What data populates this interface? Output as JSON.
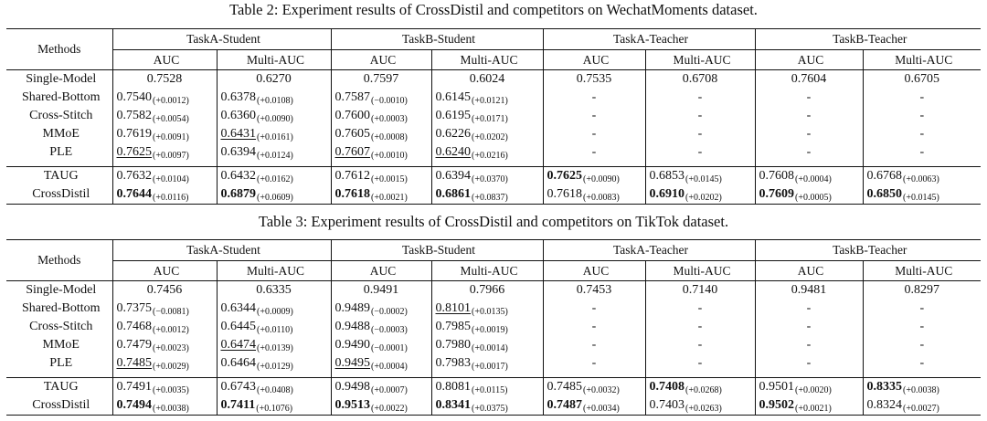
{
  "table2": {
    "caption": "Table 2: Experiment results of CrossDistil and competitors on WechatMoments dataset.",
    "methods_label": "Methods",
    "groups": [
      "TaskA-Student",
      "TaskB-Student",
      "TaskA-Teacher",
      "TaskB-Teacher"
    ],
    "subheads": [
      "AUC",
      "Multi-AUC",
      "AUC",
      "Multi-AUC",
      "AUC",
      "Multi-AUC",
      "AUC",
      "Multi-AUC"
    ],
    "rows": [
      {
        "method": "Single-Model",
        "cells": [
          {
            "v": "0.7528"
          },
          {
            "v": "0.6270"
          },
          {
            "v": "0.7597"
          },
          {
            "v": "0.6024"
          },
          {
            "v": "0.7535"
          },
          {
            "v": "0.6708"
          },
          {
            "v": "0.7604"
          },
          {
            "v": "0.6705"
          }
        ]
      },
      {
        "method": "Shared-Bottom",
        "cells": [
          {
            "v": "0.7540",
            "d": "(+0.0012)"
          },
          {
            "v": "0.6378",
            "d": "(+0.0108)"
          },
          {
            "v": "0.7587",
            "d": "(−0.0010)"
          },
          {
            "v": "0.6145",
            "d": "(+0.0121)"
          },
          {
            "v": "-"
          },
          {
            "v": "-"
          },
          {
            "v": "-"
          },
          {
            "v": "-"
          }
        ]
      },
      {
        "method": "Cross-Stitch",
        "cells": [
          {
            "v": "0.7582",
            "d": "(+0.0054)"
          },
          {
            "v": "0.6360",
            "d": "(+0.0090)"
          },
          {
            "v": "0.7600",
            "d": "(+0.0003)"
          },
          {
            "v": "0.6195",
            "d": "(+0.0171)"
          },
          {
            "v": "-"
          },
          {
            "v": "-"
          },
          {
            "v": "-"
          },
          {
            "v": "-"
          }
        ]
      },
      {
        "method": "MMoE",
        "cells": [
          {
            "v": "0.7619",
            "d": "(+0.0091)"
          },
          {
            "v": "0.6431",
            "d": "(+0.0161)",
            "u": true
          },
          {
            "v": "0.7605",
            "d": "(+0.0008)"
          },
          {
            "v": "0.6226",
            "d": "(+0.0202)"
          },
          {
            "v": "-"
          },
          {
            "v": "-"
          },
          {
            "v": "-"
          },
          {
            "v": "-"
          }
        ]
      },
      {
        "method": "PLE",
        "cells": [
          {
            "v": "0.7625",
            "d": "(+0.0097)",
            "u": true
          },
          {
            "v": "0.6394",
            "d": "(+0.0124)"
          },
          {
            "v": "0.7607",
            "d": "(+0.0010)",
            "u": true
          },
          {
            "v": "0.6240",
            "d": "(+0.0216)",
            "u": true
          },
          {
            "v": "-"
          },
          {
            "v": "-"
          },
          {
            "v": "-"
          },
          {
            "v": "-"
          }
        ]
      },
      {
        "method": "TAUG",
        "cells": [
          {
            "v": "0.7632",
            "d": "(+0.0104)"
          },
          {
            "v": "0.6432",
            "d": "(+0.0162)"
          },
          {
            "v": "0.7612",
            "d": "(+0.0015)"
          },
          {
            "v": "0.6394",
            "d": "(+0.0370)"
          },
          {
            "v": "0.7625",
            "d": "(+0.0090)",
            "b": true
          },
          {
            "v": "0.6853",
            "d": "(+0.0145)"
          },
          {
            "v": "0.7608",
            "d": "(+0.0004)"
          },
          {
            "v": "0.6768",
            "d": "(+0.0063)"
          }
        ]
      },
      {
        "method": "CrossDistil",
        "cells": [
          {
            "v": "0.7644",
            "d": "(+0.0116)",
            "b": true
          },
          {
            "v": "0.6879",
            "d": "(+0.0609)",
            "b": true
          },
          {
            "v": "0.7618",
            "d": "(+0.0021)",
            "b": true
          },
          {
            "v": "0.6861",
            "d": "(+0.0837)",
            "b": true
          },
          {
            "v": "0.7618",
            "d": "(+0.0083)"
          },
          {
            "v": "0.6910",
            "d": "(+0.0202)",
            "b": true
          },
          {
            "v": "0.7609",
            "d": "(+0.0005)",
            "b": true
          },
          {
            "v": "0.6850",
            "d": "(+0.0145)",
            "b": true
          }
        ]
      }
    ]
  },
  "table3": {
    "caption": "Table 3: Experiment results of CrossDistil and competitors on TikTok dataset.",
    "methods_label": "Methods",
    "groups": [
      "TaskA-Student",
      "TaskB-Student",
      "TaskA-Teacher",
      "TaskB-Teacher"
    ],
    "subheads": [
      "AUC",
      "Multi-AUC",
      "AUC",
      "Multi-AUC",
      "AUC",
      "Multi-AUC",
      "AUC",
      "Multi-AUC"
    ],
    "rows": [
      {
        "method": "Single-Model",
        "cells": [
          {
            "v": "0.7456"
          },
          {
            "v": "0.6335"
          },
          {
            "v": "0.9491"
          },
          {
            "v": "0.7966"
          },
          {
            "v": "0.7453"
          },
          {
            "v": "0.7140"
          },
          {
            "v": "0.9481"
          },
          {
            "v": "0.8297"
          }
        ]
      },
      {
        "method": "Shared-Bottom",
        "cells": [
          {
            "v": "0.7375",
            "d": "(−0.0081)"
          },
          {
            "v": "0.6344",
            "d": "(+0.0009)"
          },
          {
            "v": "0.9489",
            "d": "(−0.0002)"
          },
          {
            "v": "0.8101",
            "d": "(+0.0135)",
            "u": true
          },
          {
            "v": "-"
          },
          {
            "v": "-"
          },
          {
            "v": "-"
          },
          {
            "v": "-"
          }
        ]
      },
      {
        "method": "Cross-Stitch",
        "cells": [
          {
            "v": "0.7468",
            "d": "(+0.0012)"
          },
          {
            "v": "0.6445",
            "d": "(+0.0110)"
          },
          {
            "v": "0.9488",
            "d": "(−0.0003)"
          },
          {
            "v": "0.7985",
            "d": "(+0.0019)"
          },
          {
            "v": "-"
          },
          {
            "v": "-"
          },
          {
            "v": "-"
          },
          {
            "v": "-"
          }
        ]
      },
      {
        "method": "MMoE",
        "cells": [
          {
            "v": "0.7479",
            "d": "(+0.0023)"
          },
          {
            "v": "0.6474",
            "d": "(+0.0139)",
            "u": true
          },
          {
            "v": "0.9490",
            "d": "(−0.0001)"
          },
          {
            "v": "0.7980",
            "d": "(+0.0014)"
          },
          {
            "v": "-"
          },
          {
            "v": "-"
          },
          {
            "v": "-"
          },
          {
            "v": "-"
          }
        ]
      },
      {
        "method": "PLE",
        "cells": [
          {
            "v": "0.7485",
            "d": "(+0.0029)",
            "u": true
          },
          {
            "v": "0.6464",
            "d": "(+0.0129)"
          },
          {
            "v": "0.9495",
            "d": "(+0.0004)",
            "u": true
          },
          {
            "v": "0.7983",
            "d": "(+0.0017)"
          },
          {
            "v": "-"
          },
          {
            "v": "-"
          },
          {
            "v": "-"
          },
          {
            "v": "-"
          }
        ]
      },
      {
        "method": "TAUG",
        "cells": [
          {
            "v": "0.7491",
            "d": "(+0.0035)"
          },
          {
            "v": "0.6743",
            "d": "(+0.0408)"
          },
          {
            "v": "0.9498",
            "d": "(+0.0007)"
          },
          {
            "v": "0.8081",
            "d": "(+0.0115)"
          },
          {
            "v": "0.7485",
            "d": "(+0.0032)"
          },
          {
            "v": "0.7408",
            "d": "(+0.0268)",
            "b": true
          },
          {
            "v": "0.9501",
            "d": "(+0.0020)"
          },
          {
            "v": "0.8335",
            "d": "(+0.0038)",
            "b": true
          }
        ]
      },
      {
        "method": "CrossDistil",
        "cells": [
          {
            "v": "0.7494",
            "d": "(+0.0038)",
            "b": true
          },
          {
            "v": "0.7411",
            "d": "(+0.1076)",
            "b": true
          },
          {
            "v": "0.9513",
            "d": "(+0.0022)",
            "b": true
          },
          {
            "v": "0.8341",
            "d": "(+0.0375)",
            "b": true
          },
          {
            "v": "0.7487",
            "d": "(+0.0034)",
            "b": true
          },
          {
            "v": "0.7403",
            "d": "(+0.0263)"
          },
          {
            "v": "0.9502",
            "d": "(+0.0021)",
            "b": true
          },
          {
            "v": "0.8324",
            "d": "(+0.0027)"
          }
        ]
      }
    ]
  }
}
